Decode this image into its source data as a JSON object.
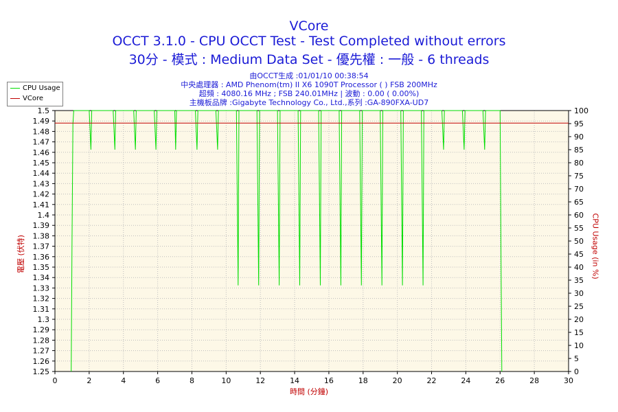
{
  "chart_data": {
    "type": "line",
    "title": "VCore",
    "subtitle_lines": [
      "OCCT 3.1.0 - CPU OCCT Test - Test Completed without errors",
      "30分 - 模式 : Medium Data Set - 優先權 : 一般 - 6 threads"
    ],
    "info_lines": [
      "由OCCT生成 :01/01/10 00:38:54",
      "中央處理器 : AMD Phenom(tm) II X6 1090T Processor (  ) FSB 200MHz",
      "超頻 : 4080.16 MHz ; FSB 240.01MHz | 波動 : 0.00 ( 0.00%)",
      "主機板品牌 :Gigabyte Technology Co., Ltd.,系列 :GA-890FXA-UD7"
    ],
    "xlabel": "時間 (分鐘)",
    "ylabel_left": "電壓 (伏特)",
    "ylabel_right": "CPU Usage (in %)",
    "xlim": [
      0,
      30
    ],
    "ylim_left": [
      1.25,
      1.5
    ],
    "ylim_right": [
      0,
      100
    ],
    "x_ticks": [
      "0",
      "2",
      "4",
      "6",
      "8",
      "10",
      "12",
      "14",
      "16",
      "18",
      "20",
      "22",
      "24",
      "26",
      "28",
      "30"
    ],
    "y_ticks_left": [
      "1.25",
      "1.26",
      "1.27",
      "1.28",
      "1.29",
      "1.3",
      "1.31",
      "1.32",
      "1.33",
      "1.34",
      "1.35",
      "1.36",
      "1.37",
      "1.38",
      "1.39",
      "1.4",
      "1.41",
      "1.42",
      "1.43",
      "1.44",
      "1.45",
      "1.46",
      "1.47",
      "1.48",
      "1.49",
      "1.5"
    ],
    "y_ticks_right": [
      "0",
      "5",
      "10",
      "15",
      "20",
      "25",
      "30",
      "35",
      "40",
      "45",
      "50",
      "55",
      "60",
      "65",
      "70",
      "75",
      "80",
      "85",
      "90",
      "95",
      "100"
    ],
    "grid": true,
    "legend_position": "top-left",
    "series": [
      {
        "name": "CPU Usage",
        "axis": "right",
        "color": "#00dd00",
        "x": [
          0.95,
          1.0,
          1.05,
          1.1,
          2.0,
          2.1,
          2.15,
          2.2,
          3.4,
          3.5,
          3.55,
          3.6,
          4.6,
          4.7,
          4.75,
          4.8,
          5.8,
          5.9,
          5.95,
          6.0,
          7.0,
          7.05,
          7.1,
          8.2,
          8.3,
          8.35,
          8.4,
          9.4,
          9.5,
          9.55,
          9.6,
          10.6,
          10.7,
          10.75,
          10.8,
          11.8,
          11.9,
          11.95,
          12.0,
          13.0,
          13.1,
          13.15,
          13.2,
          14.2,
          14.3,
          14.35,
          14.4,
          15.4,
          15.5,
          15.55,
          15.6,
          16.6,
          16.7,
          16.75,
          16.8,
          17.8,
          17.9,
          17.95,
          18.0,
          19.0,
          19.1,
          19.15,
          19.2,
          20.2,
          20.3,
          20.35,
          20.4,
          21.4,
          21.5,
          21.55,
          21.6,
          22.6,
          22.7,
          22.75,
          22.8,
          23.8,
          23.9,
          23.95,
          24.0,
          25.0,
          25.1,
          25.15,
          25.2,
          26.0,
          26.05,
          26.1
        ],
        "y": [
          0,
          50,
          95,
          100,
          100,
          85,
          100,
          100,
          100,
          85,
          100,
          100,
          100,
          85,
          100,
          100,
          100,
          85,
          100,
          100,
          100,
          85,
          100,
          100,
          85,
          100,
          100,
          100,
          85,
          100,
          100,
          100,
          33,
          100,
          100,
          100,
          33,
          100,
          100,
          100,
          33,
          100,
          100,
          100,
          33,
          100,
          100,
          100,
          33,
          100,
          100,
          100,
          33,
          100,
          100,
          100,
          33,
          100,
          100,
          100,
          33,
          100,
          100,
          100,
          33,
          100,
          100,
          100,
          33,
          100,
          100,
          100,
          85,
          100,
          100,
          100,
          85,
          100,
          100,
          100,
          85,
          100,
          100,
          100,
          50,
          0
        ]
      },
      {
        "name": "VCore",
        "axis": "left",
        "color": "#c00000",
        "x": [
          0,
          30
        ],
        "y": [
          1.488,
          1.488
        ]
      }
    ]
  }
}
